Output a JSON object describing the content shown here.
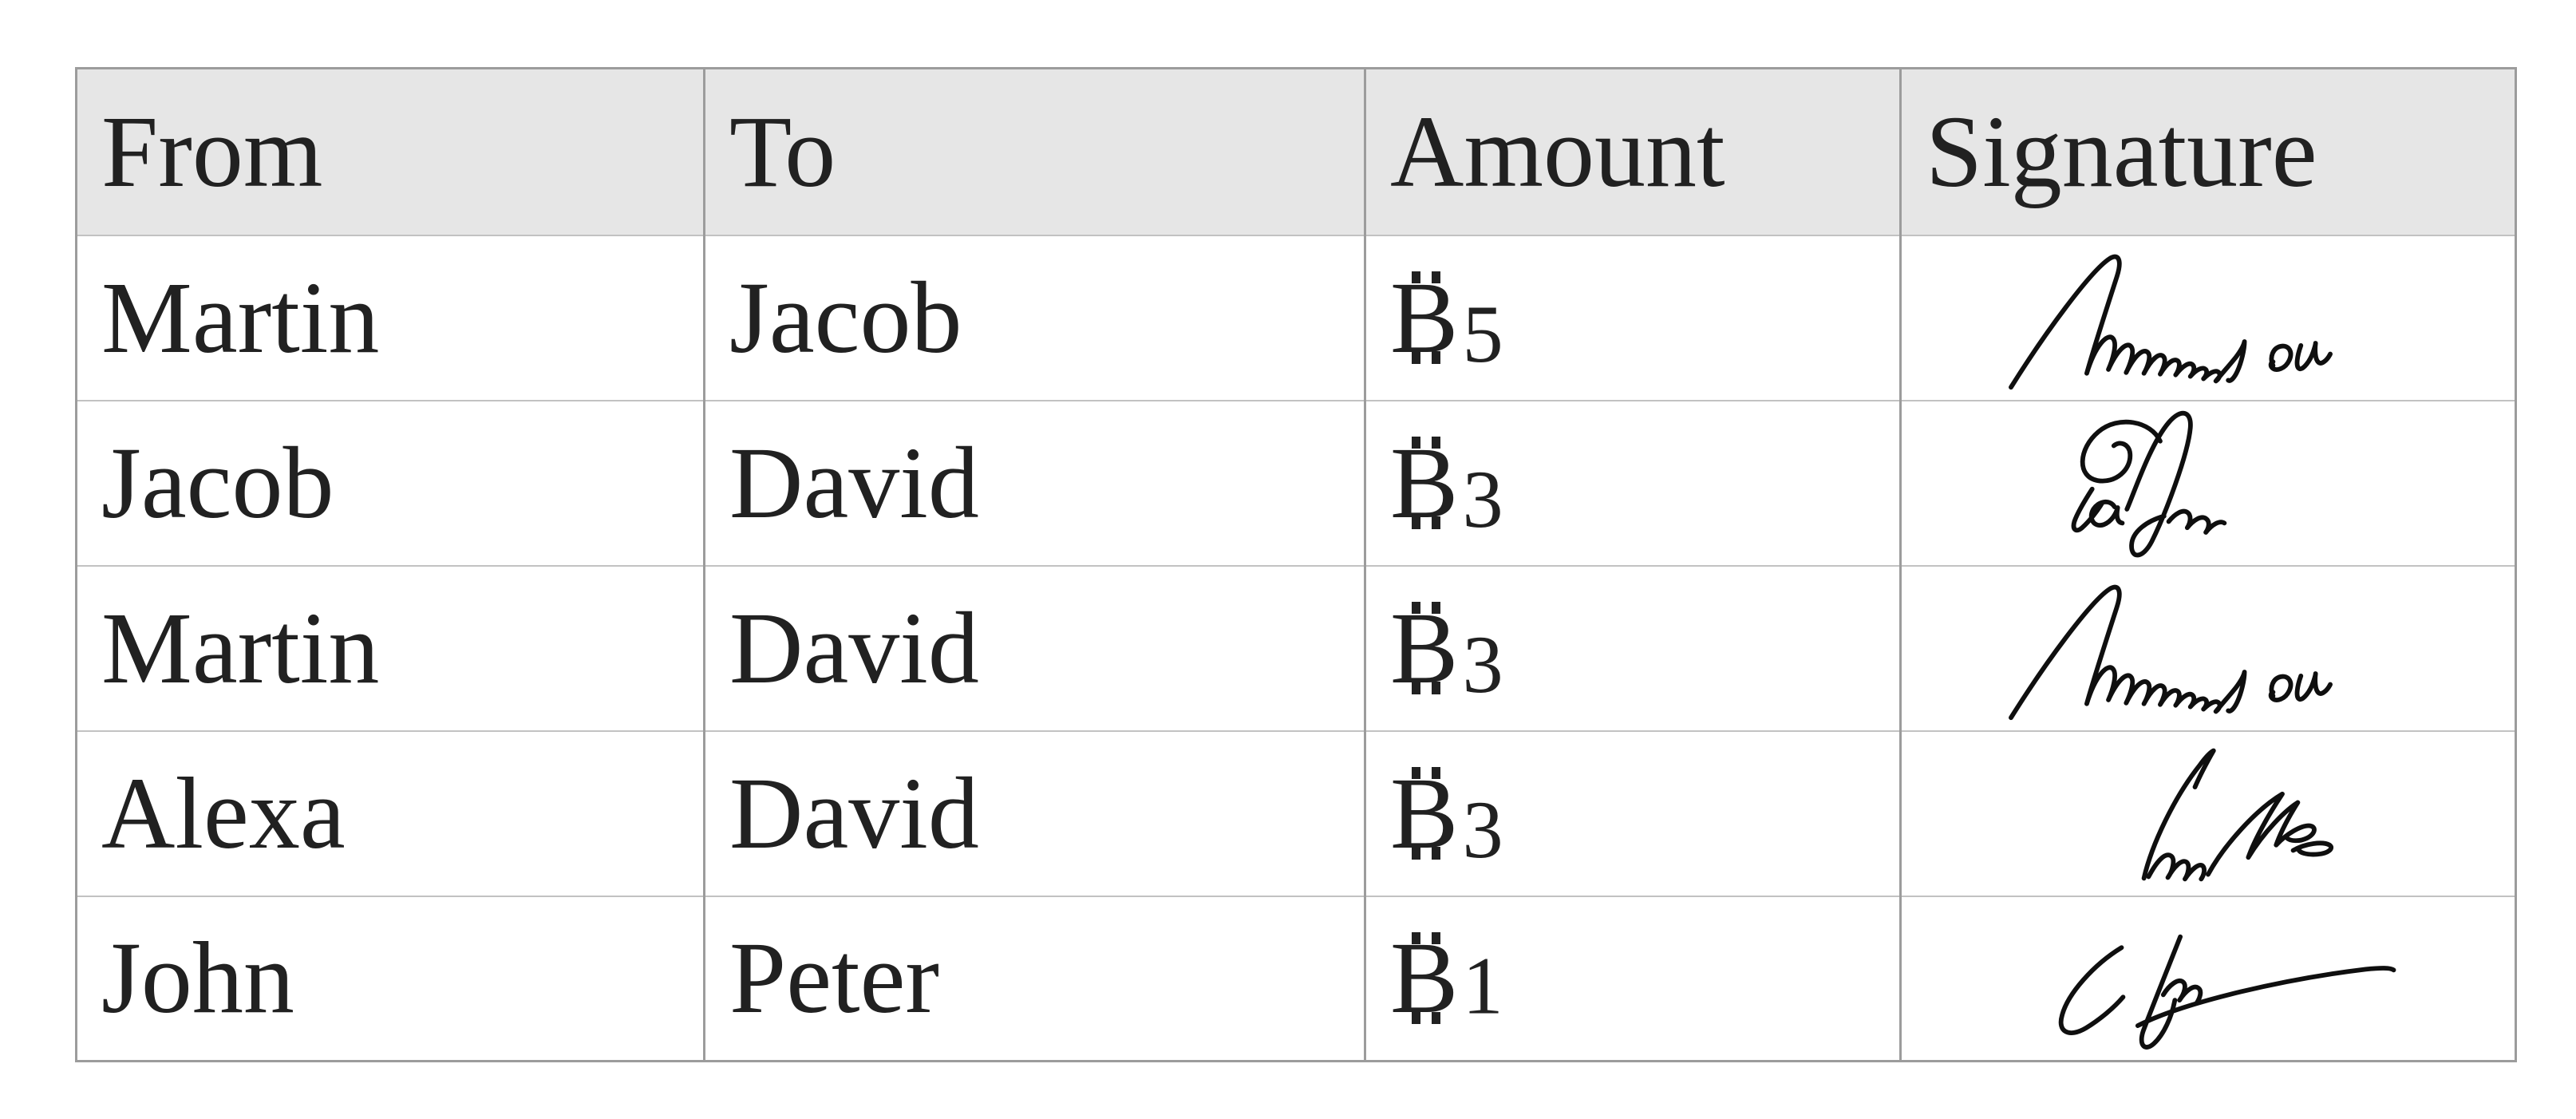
{
  "colors": {
    "page_background": "#ffffff",
    "header_background": "#e6e6e6",
    "border_vertical": "#9c9c9c",
    "border_horizontal": "#c2c2c2",
    "text": "#212121",
    "signature_ink": "#0f0f0f"
  },
  "table": {
    "headers": [
      {
        "label": "From"
      },
      {
        "label": "To"
      },
      {
        "label": "Amount"
      },
      {
        "label": "Signature"
      }
    ],
    "currency": {
      "icon": "bitcoin-sign",
      "letter": "B"
    },
    "rows": [
      {
        "from": "Martin",
        "to": "Jacob",
        "amount": "5",
        "signature": "martin"
      },
      {
        "from": "Jacob",
        "to": "David",
        "amount": "3",
        "signature": "jacob"
      },
      {
        "from": "Martin",
        "to": "David",
        "amount": "3",
        "signature": "martin"
      },
      {
        "from": "Alexa",
        "to": "David",
        "amount": "3",
        "signature": "alexa"
      },
      {
        "from": "John",
        "to": "Peter",
        "amount": "1",
        "signature": "john"
      }
    ]
  }
}
